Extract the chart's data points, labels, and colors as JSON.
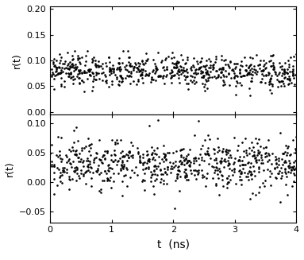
{
  "upper_plot": {
    "t_range": [
      0.0,
      4.0
    ],
    "r_center": 0.082,
    "r_spread": 0.015,
    "n_points": 700,
    "ylim": [
      -0.005,
      0.205
    ],
    "yticks": [
      0.0,
      0.05,
      0.1,
      0.15,
      0.2
    ],
    "ylabel": "r(t)"
  },
  "lower_plot": {
    "t_range": [
      0.0,
      4.0
    ],
    "r_center": 0.03,
    "r_spread": 0.02,
    "n_points": 700,
    "ylim": [
      -0.068,
      0.115
    ],
    "yticks": [
      -0.05,
      0.0,
      0.05,
      0.1
    ],
    "ylabel": "r(t)"
  },
  "xlabel": "t  (ns)",
  "xticks": [
    0,
    1,
    2,
    3,
    4
  ],
  "marker_size": 3.5,
  "marker_color": "black",
  "background_color": "white",
  "figure_size": [
    3.83,
    3.27
  ],
  "dpi": 100,
  "seed_upper": 42,
  "seed_lower": 99
}
